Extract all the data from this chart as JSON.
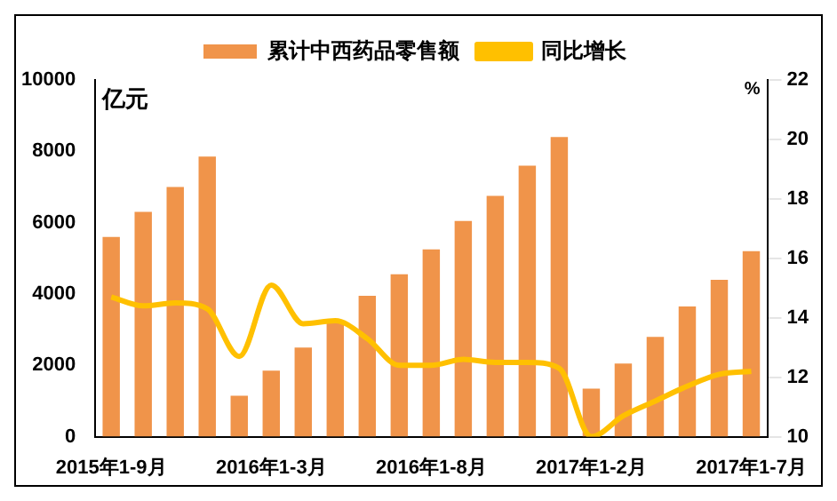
{
  "chart_data": {
    "type": "bar",
    "ylabel": "亿元",
    "y2label": "%",
    "categories": [
      "2015年1-9月",
      null,
      null,
      null,
      null,
      "2016年1-3月",
      null,
      null,
      null,
      null,
      "2016年1-8月",
      null,
      null,
      null,
      null,
      "2017年1-2月",
      null,
      null,
      null,
      null,
      "2017年1-7月"
    ],
    "series": [
      {
        "name": "累计中西药品零售额",
        "color": "#f0944a",
        "values": [
          5600,
          6300,
          7000,
          7850,
          1150,
          1850,
          2500,
          3200,
          3950,
          4550,
          5250,
          6050,
          6750,
          7600,
          8400,
          1350,
          2050,
          2800,
          3650,
          4400,
          5200
        ]
      },
      {
        "name": "同比增长",
        "type": "line",
        "axis": "y2",
        "color": "#ffc000",
        "values": [
          14.7,
          14.4,
          14.5,
          14.3,
          12.7,
          15.1,
          13.8,
          13.9,
          13.3,
          12.4,
          12.4,
          12.6,
          12.5,
          12.5,
          12.3,
          10,
          10.7,
          11.2,
          11.7,
          12.1,
          12.2
        ]
      }
    ],
    "ylim": [
      0,
      10000
    ],
    "yticks": [
      0,
      2000,
      4000,
      6000,
      8000,
      10000
    ],
    "y2lim": [
      10,
      22
    ],
    "y2ticks": [
      10,
      12,
      14,
      16,
      18,
      20,
      22
    ],
    "legend": "top",
    "marker": "none"
  }
}
